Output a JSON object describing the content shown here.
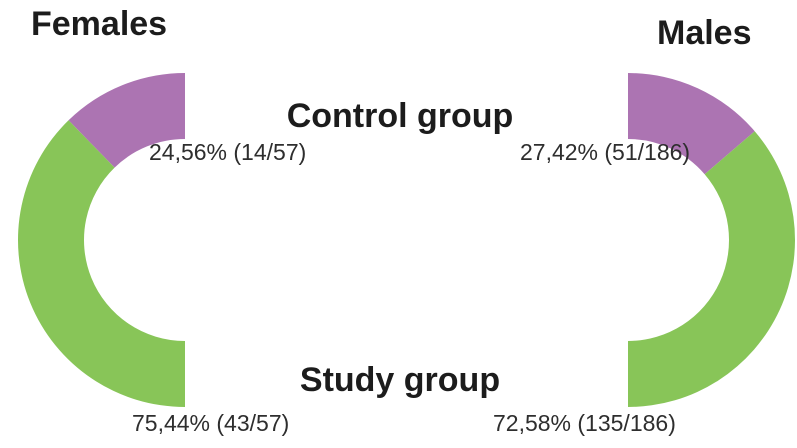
{
  "colors": {
    "control": "#AC74B2",
    "study": "#88C558",
    "text_heading": "#1c1c1c",
    "text_value": "#2e2e2e",
    "background": "#ffffff"
  },
  "group_labels": {
    "control": "Control group",
    "study": "Study group"
  },
  "chart_data": [
    {
      "type": "pie",
      "variant": "half-donut",
      "name": "Females",
      "opening": "right",
      "total": 57,
      "legend_position": "none",
      "segments": [
        {
          "name": "Control group",
          "count": 14,
          "percent": 24.56,
          "label": "24,56% (14/57)",
          "color_key": "control"
        },
        {
          "name": "Study group",
          "count": 43,
          "percent": 75.44,
          "label": "75,44% (43/57)",
          "color_key": "study"
        }
      ]
    },
    {
      "type": "pie",
      "variant": "half-donut",
      "name": "Males",
      "opening": "left",
      "total": 186,
      "legend_position": "none",
      "segments": [
        {
          "name": "Control group",
          "count": 51,
          "percent": 27.42,
          "label": "27,42% (51/186)",
          "color_key": "control"
        },
        {
          "name": "Study group",
          "count": 135,
          "percent": 72.58,
          "label": "72,58% (135/186)",
          "color_key": "study"
        }
      ]
    }
  ]
}
